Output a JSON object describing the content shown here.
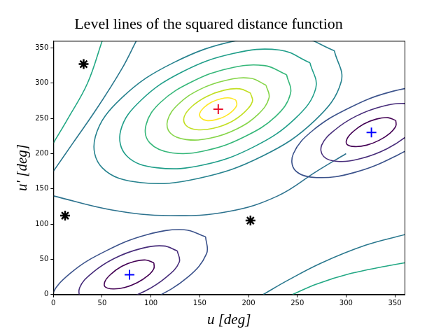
{
  "chart_data": {
    "type": "contour",
    "title": "Level lines of the squared distance function",
    "x_label": "u [deg]",
    "y_label": "u′ [deg]",
    "xlim": [
      0,
      360
    ],
    "ylim": [
      0,
      360
    ],
    "xticks": [
      0,
      50,
      100,
      150,
      200,
      250,
      300,
      350
    ],
    "yticks": [
      0,
      50,
      100,
      150,
      200,
      250,
      300,
      350
    ],
    "grid": false,
    "level_lines": [
      {
        "color": "#fde725",
        "x": [
          187,
          181,
          172,
          162,
          154,
          150,
          151,
          157,
          166,
          176,
          184,
          188,
          187
        ],
        "y": [
          276,
          279,
          278,
          273,
          265,
          257,
          251,
          247,
          248,
          253,
          261,
          269,
          276
        ]
      },
      {
        "color": "#c2df23",
        "x": [
          202,
          191,
          175,
          157,
          142,
          134,
          136,
          147,
          164,
          182,
          196,
          204,
          202
        ],
        "y": [
          286,
          292,
          290,
          281,
          267,
          252,
          240,
          234,
          236,
          245,
          259,
          274,
          286
        ]
      },
      {
        "color": "#86d549",
        "x": [
          218,
          202,
          177,
          150,
          128,
          117,
          120,
          136,
          161,
          188,
          210,
          221,
          218
        ],
        "y": [
          297,
          307,
          304,
          291,
          270,
          247,
          229,
          220,
          222,
          235,
          256,
          279,
          297
        ]
      },
      {
        "color": "#35b779",
        "x": [
          239,
          216,
          180,
          142,
          110,
          95,
          99,
          122,
          158,
          196,
          228,
          243,
          239
        ],
        "y": [
          312,
          325,
          321,
          302,
          273,
          241,
          215,
          201,
          205,
          224,
          253,
          285,
          312
        ]
      },
      {
        "color": "#1f9e89",
        "x": [
          263,
          232,
          184,
          132,
          90,
          69,
          75,
          106,
          154,
          206,
          248,
          269,
          263
        ],
        "y": [
          329,
          347,
          342,
          316,
          276,
          233,
          197,
          180,
          184,
          210,
          250,
          293,
          329
        ]
      },
      {
        "color": "#26828e",
        "x": [
          288,
          249,
          189,
          123,
          70,
          43,
          50,
          89,
          149,
          215,
          268,
          295,
          288
        ],
        "y": [
          346,
          367,
          361,
          329,
          279,
          224,
          180,
          159,
          165,
          197,
          247,
          302,
          346
        ]
      },
      {
        "color": "#440154",
        "x": [
          103,
          95,
          83,
          70,
          59,
          53,
          53,
          61,
          73,
          86,
          97,
          103,
          103
        ],
        "y": [
          45,
          49,
          47,
          40,
          29,
          19,
          11,
          8,
          10,
          17,
          27,
          37,
          45
        ]
      },
      {
        "color": "#440154",
        "x": [
          351,
          343,
          331,
          318,
          307,
          301,
          301,
          309,
          321,
          334,
          345,
          351,
          351
        ],
        "y": [
          247,
          251,
          249,
          242,
          231,
          221,
          213,
          210,
          212,
          219,
          229,
          239,
          247
        ]
      },
      {
        "color": "#472c7a",
        "x": [
          127,
          113,
          89,
          62,
          40,
          27,
          29,
          43,
          67,
          94,
          116,
          129,
          127
        ],
        "y": [
          62,
          69,
          65,
          51,
          31,
          10,
          -6,
          -13,
          -9,
          5,
          25,
          46,
          62
        ]
      },
      {
        "color": "#472c7a",
        "x": [
          375,
          361,
          337,
          310,
          288,
          275,
          277,
          291,
          315,
          342,
          364,
          377,
          375
        ],
        "y": [
          264,
          271,
          267,
          253,
          233,
          212,
          196,
          189,
          193,
          207,
          227,
          248,
          264
        ]
      },
      {
        "color": "#3b528b",
        "x": [
          156,
          134,
          96,
          54,
          18,
          -2,
          0,
          22,
          60,
          102,
          138,
          157,
          156
        ],
        "y": [
          82,
          92,
          85,
          62,
          31,
          -2,
          -26,
          -36,
          -29,
          -6,
          25,
          58,
          82
        ]
      },
      {
        "color": "#3b528b",
        "x": [
          404,
          382,
          344,
          302,
          266,
          246,
          248,
          270,
          308,
          350,
          386,
          405,
          404
        ],
        "y": [
          284,
          294,
          287,
          264,
          233,
          200,
          176,
          166,
          173,
          196,
          227,
          263,
          284
        ]
      },
      {
        "color": "#2c728e",
        "x": [
          0,
          60,
          120,
          180,
          230,
          270,
          300
        ],
        "y": [
          140,
          120,
          112,
          118,
          140,
          175,
          200
        ]
      },
      {
        "color": "#2a788e",
        "x": [
          215,
          240,
          275,
          320,
          360
        ],
        "y": [
          0,
          20,
          45,
          70,
          85
        ]
      },
      {
        "color": "#22a884",
        "x": [
          245,
          270,
          305,
          340,
          360
        ],
        "y": [
          0,
          15,
          30,
          40,
          45
        ]
      },
      {
        "color": "#2a788e",
        "x": [
          0,
          20,
          45,
          70,
          85
        ],
        "y": [
          175,
          215,
          265,
          320,
          360
        ]
      },
      {
        "color": "#22a884",
        "x": [
          0,
          15,
          35,
          50
        ],
        "y": [
          215,
          250,
          300,
          360
        ]
      }
    ],
    "series": [
      {
        "color": "#e8112d",
        "marker": "plus",
        "x": [
          169
        ],
        "y": [
          263
        ]
      },
      {
        "color": "#0000ff",
        "marker": "plus",
        "x": [
          78,
          326
        ],
        "y": [
          28,
          230
        ]
      },
      {
        "color": "#000000",
        "marker": "star",
        "x": [
          31,
          12,
          202
        ],
        "y": [
          327,
          112,
          105
        ]
      }
    ]
  }
}
